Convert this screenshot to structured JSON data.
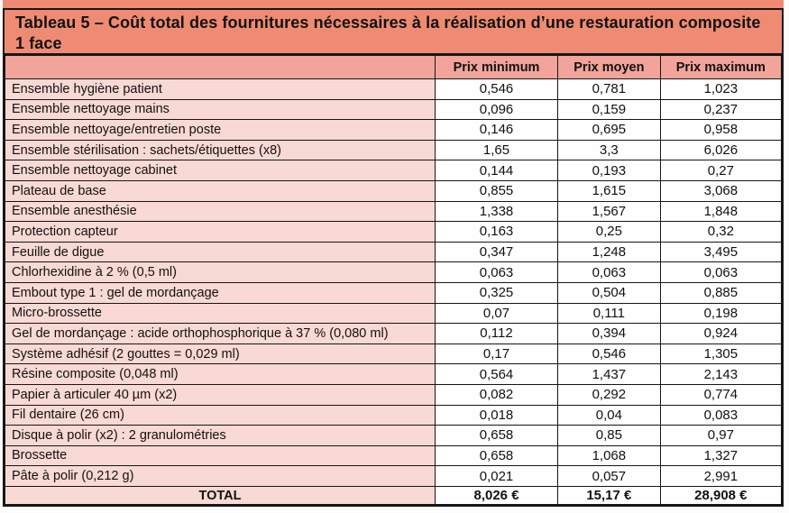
{
  "title": "Tableau 5 – Coût total des fournitures nécessaires à la réalisation d’une restauration composite 1 face",
  "colors": {
    "title_band": "#ef8b72",
    "header_row": "#f2a49a",
    "row_label": "#f9d9d3",
    "border": "#161616"
  },
  "table": {
    "headers": {
      "item": "",
      "min": "Prix minimum",
      "avg": "Prix moyen",
      "max": "Prix maximum"
    },
    "rows": [
      {
        "label": "Ensemble hygiène patient",
        "min": "0,546",
        "avg": "0,781",
        "max": "1,023"
      },
      {
        "label": "Ensemble nettoyage mains",
        "min": "0,096",
        "avg": "0,159",
        "max": "0,237"
      },
      {
        "label": "Ensemble nettoyage/entretien poste",
        "min": "0,146",
        "avg": "0,695",
        "max": "0,958"
      },
      {
        "label": "Ensemble stérilisation : sachets/étiquettes (x8)",
        "min": "1,65",
        "avg": "3,3",
        "max": "6,026"
      },
      {
        "label": "Ensemble nettoyage cabinet",
        "min": "0,144",
        "avg": "0,193",
        "max": "0,27"
      },
      {
        "label": "Plateau de base",
        "min": "0,855",
        "avg": "1,615",
        "max": "3,068"
      },
      {
        "label": "Ensemble anesthésie",
        "min": "1,338",
        "avg": "1,567",
        "max": "1,848"
      },
      {
        "label": "Protection capteur",
        "min": "0,163",
        "avg": "0,25",
        "max": "0,32"
      },
      {
        "label": "Feuille de digue",
        "min": "0,347",
        "avg": "1,248",
        "max": "3,495"
      },
      {
        "label": "Chlorhexidine à 2 % (0,5 ml)",
        "min": "0,063",
        "avg": "0,063",
        "max": "0,063"
      },
      {
        "label": "Embout type 1 : gel de mordançage",
        "min": "0,325",
        "avg": "0,504",
        "max": "0,885"
      },
      {
        "label": "Micro-brossette",
        "min": "0,07",
        "avg": "0,111",
        "max": "0,198"
      },
      {
        "label": "Gel de mordançage : acide orthophosphorique à 37 % (0,080 ml)",
        "min": "0,112",
        "avg": "0,394",
        "max": "0,924"
      },
      {
        "label": "Système adhésif (2 gouttes = 0,029 ml)",
        "min": "0,17",
        "avg": "0,546",
        "max": "1,305"
      },
      {
        "label": "Résine composite (0,048 ml)",
        "min": "0,564",
        "avg": "1,437",
        "max": "2,143"
      },
      {
        "label": "Papier à articuler 40 µm (x2)",
        "min": "0,082",
        "avg": "0,292",
        "max": "0,774"
      },
      {
        "label": "Fil dentaire (26 cm)",
        "min": "0,018",
        "avg": "0,04",
        "max": "0,083"
      },
      {
        "label": "Disque à polir (x2) : 2 granulométries",
        "min": "0,658",
        "avg": "0,85",
        "max": "0,97"
      },
      {
        "label": "Brossette",
        "min": "0,658",
        "avg": "1,068",
        "max": "1,327"
      },
      {
        "label": "Pâte à polir (0,212 g)",
        "min": "0,021",
        "avg": "0,057",
        "max": "2,991"
      }
    ],
    "total": {
      "label": "TOTAL",
      "min": "8,026 €",
      "avg": "15,17 €",
      "max": "28,908 €"
    }
  }
}
